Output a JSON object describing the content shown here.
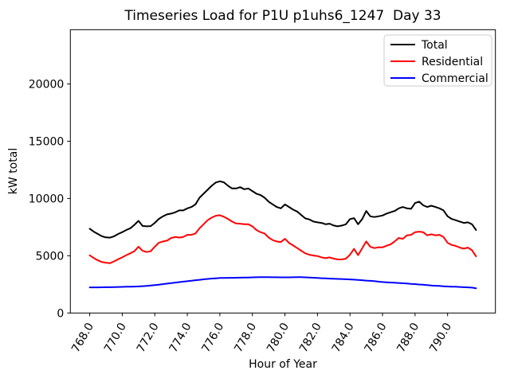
{
  "chart_data": {
    "type": "line",
    "title": "Timeseries Load for P1U p1uhs6_1247  Day 33",
    "xlabel": "Hour of Year",
    "ylabel": "kW total",
    "xlim": [
      766.81,
      792.94
    ],
    "ylim": [
      0,
      24740
    ],
    "xticks": [
      768,
      770,
      772,
      774,
      776,
      778,
      780,
      782,
      784,
      786,
      788,
      790
    ],
    "xtick_labels": [
      "768.0",
      "770.0",
      "772.0",
      "774.0",
      "776.0",
      "778.0",
      "780.0",
      "782.0",
      "784.0",
      "786.0",
      "788.0",
      "790.0"
    ],
    "yticks": [
      0,
      5000,
      10000,
      15000,
      20000
    ],
    "ytick_labels": [
      "0",
      "5000",
      "10000",
      "15000",
      "20000"
    ],
    "grid": false,
    "legend_position": "upper right",
    "x_start": 768.0,
    "x_step": 0.25,
    "x": [
      768.0,
      768.25,
      768.5,
      768.75,
      769.0,
      769.25,
      769.5,
      769.75,
      770.0,
      770.25,
      770.5,
      770.75,
      771.0,
      771.25,
      771.5,
      771.75,
      772.0,
      772.25,
      772.5,
      772.75,
      773.0,
      773.25,
      773.5,
      773.75,
      774.0,
      774.25,
      774.5,
      774.75,
      775.0,
      775.25,
      775.5,
      775.75,
      776.0,
      776.25,
      776.5,
      776.75,
      777.0,
      777.25,
      777.5,
      777.75,
      778.0,
      778.25,
      778.5,
      778.75,
      779.0,
      779.25,
      779.5,
      779.75,
      780.0,
      780.25,
      780.5,
      780.75,
      781.0,
      781.25,
      781.5,
      781.75,
      782.0,
      782.25,
      782.5,
      782.75,
      783.0,
      783.25,
      783.5,
      783.75,
      784.0,
      784.25,
      784.5,
      784.75,
      785.0,
      785.25,
      785.5,
      785.75,
      786.0,
      786.25,
      786.5,
      786.75,
      787.0,
      787.25,
      787.5,
      787.75,
      788.0,
      788.25,
      788.5,
      788.75,
      789.0,
      789.25,
      789.5,
      789.75,
      790.0,
      790.25,
      790.5,
      790.75,
      791.0,
      791.25,
      791.5,
      791.75
    ],
    "series": [
      {
        "name": "Total",
        "color": "#000000",
        "values": [
          7360,
          7100,
          6900,
          6700,
          6600,
          6580,
          6700,
          6900,
          7060,
          7250,
          7400,
          7700,
          8050,
          7600,
          7570,
          7590,
          7870,
          8215,
          8445,
          8610,
          8680,
          8790,
          8955,
          8955,
          9140,
          9255,
          9485,
          10070,
          10415,
          10765,
          11110,
          11400,
          11500,
          11410,
          11110,
          10875,
          10875,
          10990,
          10805,
          10875,
          10650,
          10415,
          10300,
          10070,
          9720,
          9485,
          9255,
          9140,
          9485,
          9255,
          9025,
          8860,
          8565,
          8265,
          8170,
          7985,
          7915,
          7870,
          7750,
          7800,
          7640,
          7570,
          7640,
          7750,
          8200,
          8285,
          7750,
          8200,
          8910,
          8445,
          8380,
          8445,
          8515,
          8680,
          8795,
          8910,
          9140,
          9255,
          9140,
          9100,
          9605,
          9720,
          9400,
          9255,
          9370,
          9255,
          9140,
          8955,
          8445,
          8215,
          8100,
          7985,
          7870,
          7915,
          7750,
          7250
        ]
      },
      {
        "name": "Residential",
        "color": "#ff0000",
        "values": [
          5040,
          4800,
          4600,
          4450,
          4390,
          4350,
          4510,
          4700,
          4860,
          5050,
          5210,
          5400,
          5790,
          5435,
          5320,
          5390,
          5785,
          6130,
          6245,
          6315,
          6545,
          6640,
          6590,
          6640,
          6825,
          6825,
          6940,
          7400,
          7750,
          8100,
          8330,
          8495,
          8540,
          8400,
          8215,
          7985,
          7820,
          7800,
          7750,
          7750,
          7570,
          7245,
          7060,
          6940,
          6595,
          6365,
          6250,
          6200,
          6480,
          6130,
          5900,
          5670,
          5440,
          5210,
          5090,
          5020,
          4975,
          4860,
          4790,
          4860,
          4745,
          4675,
          4675,
          4745,
          5090,
          5600,
          5050,
          5650,
          6250,
          5785,
          5670,
          5730,
          5730,
          5870,
          6000,
          6250,
          6550,
          6480,
          6780,
          6825,
          7055,
          7105,
          7055,
          6780,
          6870,
          6780,
          6825,
          6640,
          6130,
          5945,
          5855,
          5715,
          5625,
          5715,
          5485,
          4950
        ]
      },
      {
        "name": "Commercial",
        "color": "#0000ff",
        "values": [
          2240,
          2240,
          2240,
          2245,
          2250,
          2255,
          2260,
          2270,
          2280,
          2290,
          2300,
          2310,
          2320,
          2345,
          2370,
          2400,
          2430,
          2475,
          2520,
          2565,
          2615,
          2655,
          2695,
          2735,
          2775,
          2815,
          2860,
          2900,
          2940,
          2975,
          3010,
          3030,
          3055,
          3065,
          3070,
          3075,
          3080,
          3085,
          3095,
          3100,
          3110,
          3120,
          3125,
          3125,
          3125,
          3120,
          3120,
          3115,
          3110,
          3115,
          3120,
          3125,
          3130,
          3115,
          3100,
          3080,
          3060,
          3040,
          3020,
          3005,
          2990,
          2975,
          2965,
          2950,
          2935,
          2910,
          2890,
          2860,
          2830,
          2805,
          2780,
          2740,
          2700,
          2680,
          2660,
          2640,
          2620,
          2600,
          2575,
          2545,
          2520,
          2490,
          2465,
          2430,
          2400,
          2380,
          2360,
          2335,
          2315,
          2300,
          2290,
          2270,
          2250,
          2235,
          2220,
          2160
        ]
      }
    ],
    "legend": [
      "Total",
      "Residential",
      "Commercial"
    ]
  },
  "colors": {
    "total": "#000000",
    "residential": "#ff0000",
    "commercial": "#0000ff",
    "legend_border": "#cccccc",
    "axis": "#000000"
  }
}
